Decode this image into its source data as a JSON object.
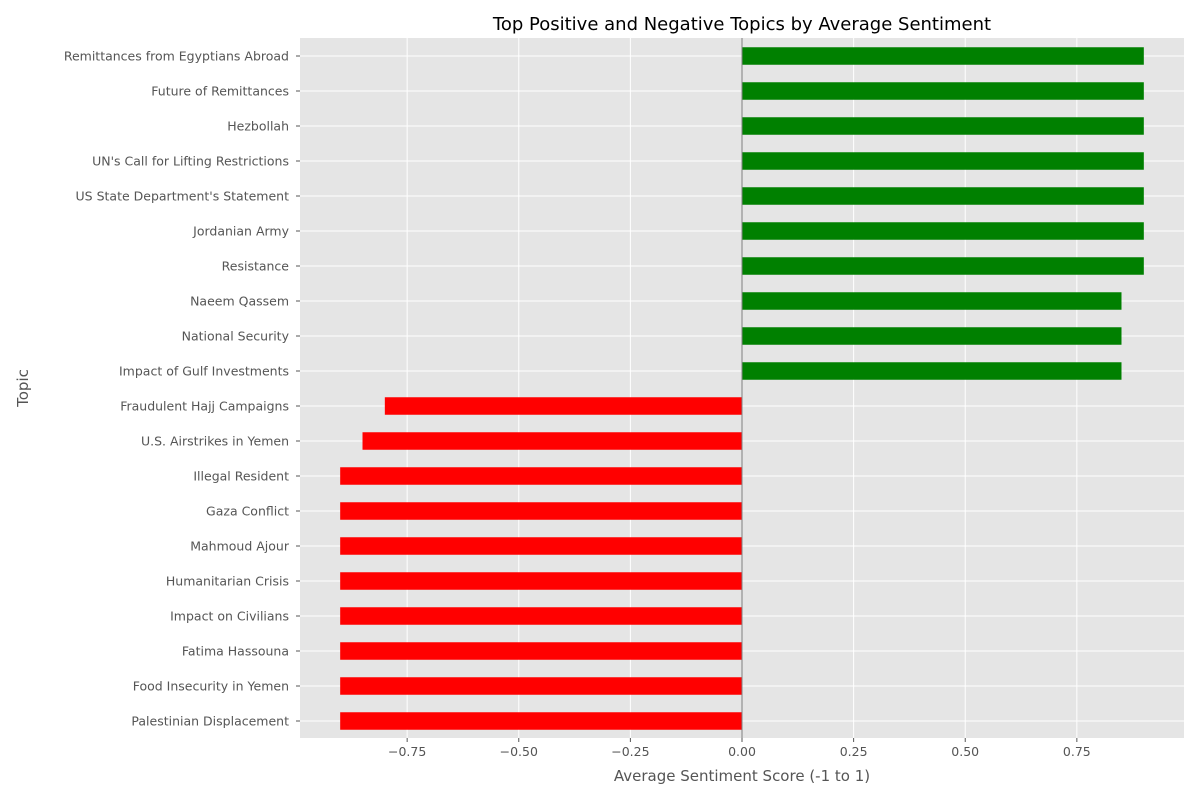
{
  "chart_data": {
    "type": "bar",
    "orientation": "horizontal",
    "title": "Top Positive and Negative Topics by Average Sentiment",
    "xlabel": "Average Sentiment Score (-1 to 1)",
    "ylabel": "Topic",
    "xlim": [
      -0.99,
      0.99
    ],
    "xticks": [
      -0.75,
      -0.5,
      -0.25,
      0.0,
      0.25,
      0.5,
      0.75
    ],
    "xtick_labels": [
      "−0.75",
      "−0.50",
      "−0.25",
      "0.00",
      "0.25",
      "0.50",
      "0.75"
    ],
    "grid": true,
    "colors": {
      "positive": "#008000",
      "negative": "#ff0000",
      "background": "#e5e5e5",
      "zero_line": "#808080"
    },
    "categories": [
      "Remittances from Egyptians Abroad",
      "Future of Remittances",
      "Hezbollah",
      "UN's Call for Lifting Restrictions",
      "US State Department's Statement",
      "Jordanian Army",
      "Resistance",
      "Naeem Qassem",
      "National Security",
      "Impact of Gulf Investments",
      "Fraudulent Hajj Campaigns",
      "U.S. Airstrikes in Yemen",
      "Illegal Resident",
      "Gaza Conflict",
      "Mahmoud Ajour",
      "Humanitarian Crisis",
      "Impact on Civilians",
      "Fatima Hassouna",
      "Food Insecurity in Yemen",
      "Palestinian Displacement"
    ],
    "values": [
      0.9,
      0.9,
      0.9,
      0.9,
      0.9,
      0.9,
      0.9,
      0.85,
      0.85,
      0.85,
      -0.8,
      -0.85,
      -0.9,
      -0.9,
      -0.9,
      -0.9,
      -0.9,
      -0.9,
      -0.9,
      -0.9
    ]
  }
}
